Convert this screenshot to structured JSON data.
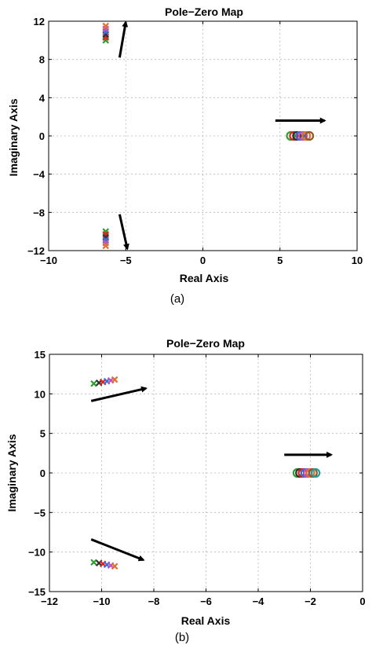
{
  "chart_data": [
    {
      "type": "scatter",
      "title": "Pole−Zero Map",
      "xlabel": "Real Axis",
      "ylabel": "Imaginary Axis",
      "caption": "(a)",
      "xlim": [
        -10,
        10
      ],
      "ylim": [
        -12,
        12
      ],
      "xticks": [
        -10,
        -5,
        0,
        5,
        10
      ],
      "yticks": [
        -12,
        -8,
        -4,
        0,
        4,
        8,
        12
      ],
      "xtick_labels": [
        "−10",
        "−5",
        "0",
        "5",
        "10"
      ],
      "ytick_labels": [
        "−12",
        "−8",
        "−4",
        "0",
        "4",
        "8",
        "12"
      ],
      "grid": true,
      "marker_colors": [
        "#2e9e2e",
        "#e02020",
        "#303030",
        "#3a6fd8",
        "#c050c0",
        "#e07030",
        "#8b5a2b",
        "#20a0a0"
      ],
      "poles": [
        {
          "x": -6.3,
          "y": 10.0
        },
        {
          "x": -6.3,
          "y": 10.3
        },
        {
          "x": -6.3,
          "y": 10.6
        },
        {
          "x": -6.3,
          "y": 10.9
        },
        {
          "x": -6.3,
          "y": 11.2
        },
        {
          "x": -6.3,
          "y": 11.5
        },
        {
          "x": -6.3,
          "y": -10.0
        },
        {
          "x": -6.3,
          "y": -10.3
        },
        {
          "x": -6.3,
          "y": -10.6
        },
        {
          "x": -6.3,
          "y": -10.9
        },
        {
          "x": -6.3,
          "y": -11.2
        },
        {
          "x": -6.3,
          "y": -11.5
        }
      ],
      "zeros": [
        {
          "x": 5.7,
          "y": 0
        },
        {
          "x": 5.9,
          "y": 0
        },
        {
          "x": 6.1,
          "y": 0
        },
        {
          "x": 6.3,
          "y": 0
        },
        {
          "x": 6.5,
          "y": 0
        },
        {
          "x": 6.7,
          "y": 0
        },
        {
          "x": 6.9,
          "y": 0
        }
      ],
      "arrows": [
        {
          "from": [
            -5.4,
            8.2
          ],
          "to": [
            -5.0,
            11.9
          ]
        },
        {
          "from": [
            -5.4,
            -8.2
          ],
          "to": [
            -4.9,
            -11.8
          ]
        },
        {
          "from": [
            4.7,
            1.6
          ],
          "to": [
            7.9,
            1.6
          ]
        }
      ]
    },
    {
      "type": "scatter",
      "title": "Pole−Zero Map",
      "xlabel": "Real Axis",
      "ylabel": "Imaginary Axis",
      "caption": "(b)",
      "xlim": [
        -12,
        0
      ],
      "ylim": [
        -15,
        15
      ],
      "xticks": [
        -12,
        -10,
        -8,
        -6,
        -4,
        -2,
        0
      ],
      "yticks": [
        -15,
        -10,
        -5,
        0,
        5,
        10,
        15
      ],
      "xtick_labels": [
        "−12",
        "−10",
        "−8",
        "−6",
        "−4",
        "−2",
        "0"
      ],
      "ytick_labels": [
        "−15",
        "−10",
        "−5",
        "0",
        "5",
        "10",
        "15"
      ],
      "grid": true,
      "marker_colors": [
        "#2e9e2e",
        "#303030",
        "#e02020",
        "#3a6fd8",
        "#c050c0",
        "#e07030",
        "#8b5a2b",
        "#20a0a0"
      ],
      "poles": [
        {
          "x": -10.3,
          "y": 11.3
        },
        {
          "x": -10.1,
          "y": 11.4
        },
        {
          "x": -9.95,
          "y": 11.5
        },
        {
          "x": -9.8,
          "y": 11.6
        },
        {
          "x": -9.65,
          "y": 11.7
        },
        {
          "x": -9.5,
          "y": 11.8
        },
        {
          "x": -10.3,
          "y": -11.3
        },
        {
          "x": -10.1,
          "y": -11.4
        },
        {
          "x": -9.95,
          "y": -11.5
        },
        {
          "x": -9.8,
          "y": -11.6
        },
        {
          "x": -9.65,
          "y": -11.7
        },
        {
          "x": -9.5,
          "y": -11.8
        }
      ],
      "zeros": [
        {
          "x": -2.5,
          "y": 0
        },
        {
          "x": -2.4,
          "y": 0
        },
        {
          "x": -2.3,
          "y": 0
        },
        {
          "x": -2.2,
          "y": 0
        },
        {
          "x": -2.1,
          "y": 0
        },
        {
          "x": -2.0,
          "y": 0
        },
        {
          "x": -1.9,
          "y": 0
        },
        {
          "x": -1.8,
          "y": 0
        }
      ],
      "arrows": [
        {
          "from": [
            -10.4,
            9.1
          ],
          "to": [
            -8.3,
            10.7
          ]
        },
        {
          "from": [
            -10.4,
            -8.4
          ],
          "to": [
            -8.4,
            -11.0
          ]
        },
        {
          "from": [
            -3.0,
            2.3
          ],
          "to": [
            -1.2,
            2.3
          ]
        }
      ]
    }
  ]
}
